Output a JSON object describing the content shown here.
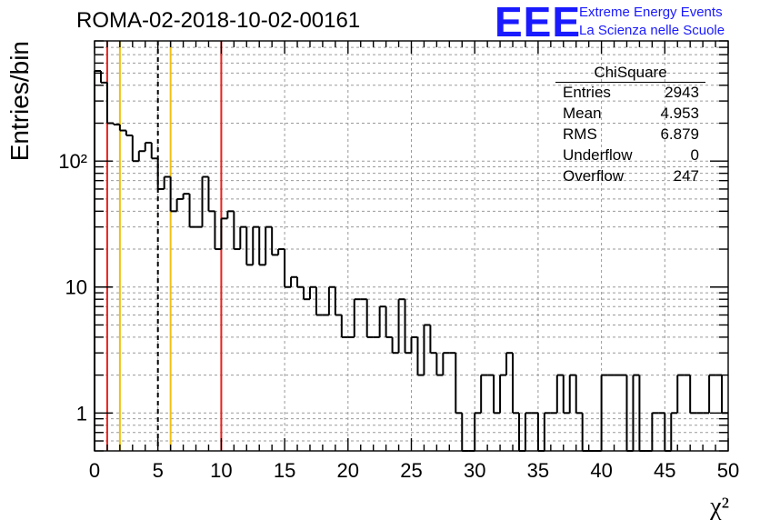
{
  "header": {
    "run_title": "ROMA-02-2018-10-02-00161",
    "logo_text": "EEE",
    "logo_line1": "Extreme Energy Events",
    "logo_line2": "La Scienza nelle Scuole",
    "logo_color": "#1a1aff"
  },
  "stats": {
    "title": "ChiSquare",
    "rows": [
      {
        "label": "Entries",
        "value": "2943"
      },
      {
        "label": "Mean",
        "value": "4.953"
      },
      {
        "label": "RMS",
        "value": "6.879"
      },
      {
        "label": "Underflow",
        "value": "0"
      },
      {
        "label": "Overflow",
        "value": "247"
      }
    ]
  },
  "chart_data": {
    "type": "histogram",
    "ylabel": "Entries/bin",
    "xlabel": "χ²",
    "xlim": [
      0,
      50
    ],
    "ylim": [
      0.5,
      900
    ],
    "yscale": "log",
    "bin_width": 0.5,
    "grid": true,
    "x_ticks": [
      0,
      5,
      10,
      15,
      20,
      25,
      30,
      35,
      40,
      45,
      50
    ],
    "y_ticks": [
      {
        "value": 1,
        "label": "1"
      },
      {
        "value": 10,
        "label": "10"
      },
      {
        "value": 100,
        "label": "10²"
      }
    ],
    "bin_counts": [
      520,
      420,
      200,
      195,
      175,
      160,
      100,
      120,
      140,
      105,
      60,
      75,
      40,
      50,
      55,
      30,
      30,
      75,
      40,
      20,
      35,
      40,
      20,
      30,
      15,
      30,
      15,
      30,
      18,
      20,
      10,
      12,
      10,
      8,
      10,
      6,
      6,
      10,
      6,
      4,
      4,
      8,
      8,
      4,
      4,
      7,
      4,
      3,
      8,
      3,
      4,
      2,
      5,
      3,
      2,
      3,
      3,
      1,
      0.5,
      0.5,
      1,
      2,
      2,
      1,
      2,
      3,
      1,
      0.5,
      1,
      1,
      0.5,
      1,
      1,
      2,
      1,
      2,
      1,
      0.5,
      0.5,
      0.5,
      2,
      2,
      2,
      2,
      0.5,
      2,
      0.5,
      0.5,
      1,
      1,
      0.5,
      1,
      2,
      2,
      1,
      1,
      1,
      2,
      2,
      1
    ],
    "reference_lines": [
      {
        "x": 1,
        "color": "#e8221e",
        "style": "solid"
      },
      {
        "x": 2,
        "color": "#f2c010",
        "style": "solid"
      },
      {
        "x": 5,
        "color": "#000000",
        "style": "dashed"
      },
      {
        "x": 6,
        "color": "#f2c010",
        "style": "solid"
      },
      {
        "x": 10,
        "color": "#e8221e",
        "style": "solid"
      }
    ]
  }
}
